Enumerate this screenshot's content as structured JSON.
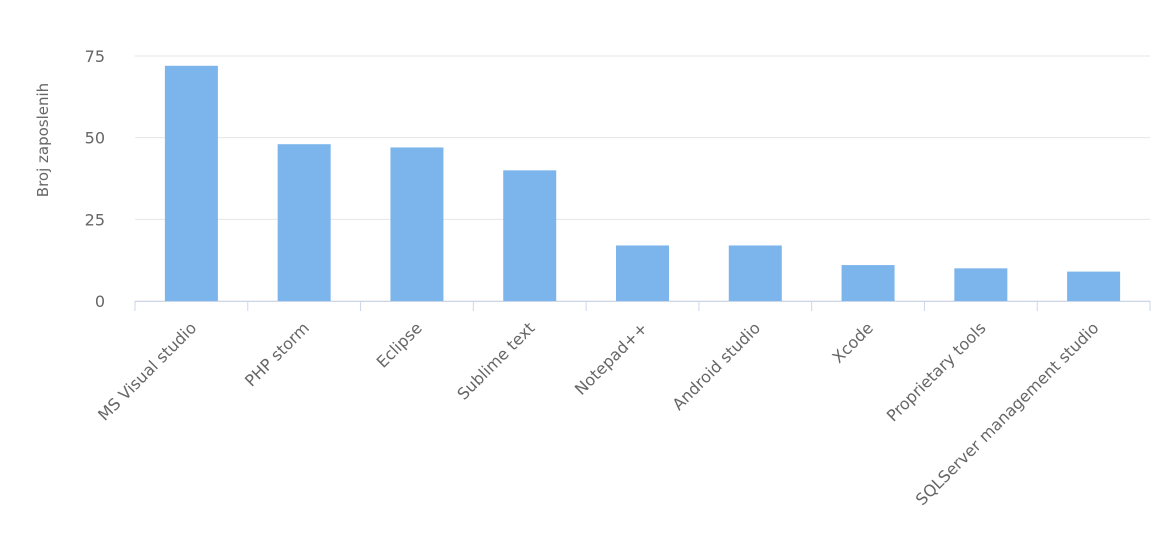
{
  "chart_data": {
    "type": "bar",
    "y_label": "Broj zaposlenih",
    "categories": [
      "MS Visual studio",
      "PHP storm",
      "Eclipse",
      "Sublime text",
      "Notepad++",
      "Android studio",
      "Xcode",
      "Proprietary tools",
      "SQLServer management studio"
    ],
    "values": [
      72,
      48,
      47,
      40,
      17,
      17,
      11,
      10,
      9
    ],
    "color": "#7cb5ec",
    "ylim": [
      0,
      75
    ],
    "yticks": [
      0,
      25,
      50,
      75
    ],
    "grid": true
  }
}
